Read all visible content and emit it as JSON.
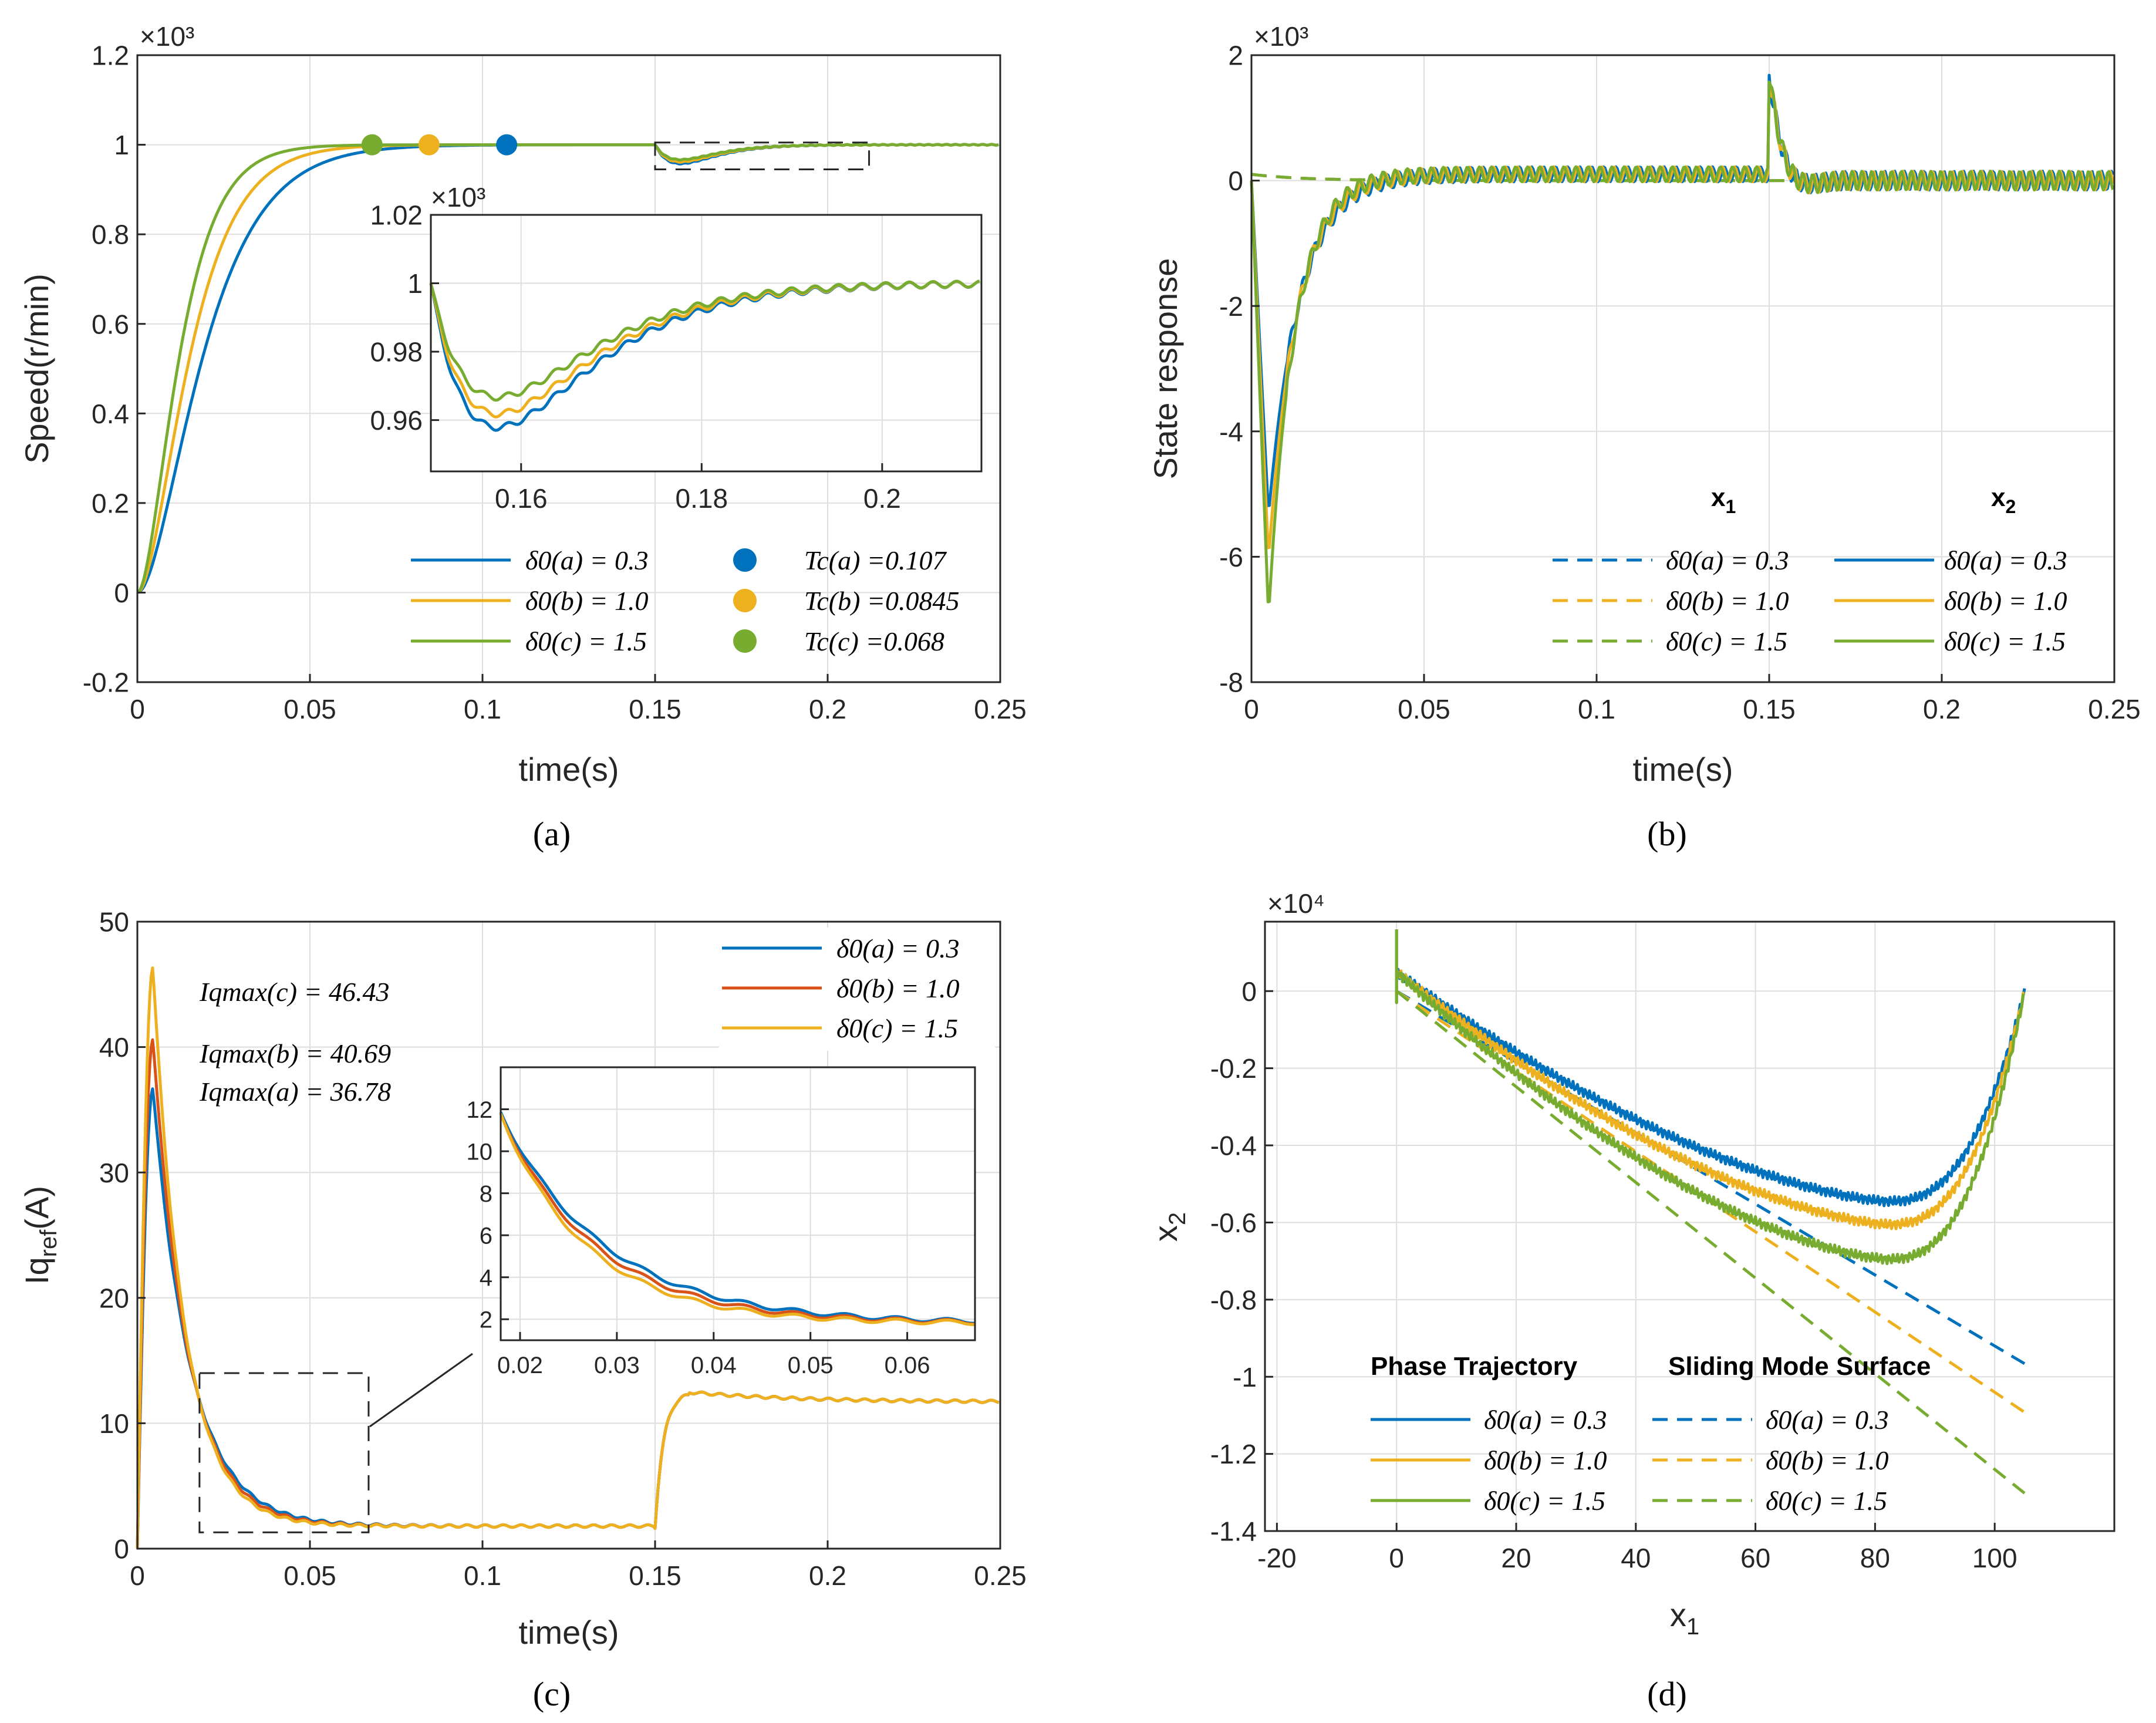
{
  "chart_data": [
    {
      "id": "a",
      "type": "line",
      "subplot_label": "(a)",
      "xlabel": "time(s)",
      "ylabel": "Speed(r/min)",
      "exponent": "×10³",
      "xlim": [
        0,
        0.25
      ],
      "ylim": [
        -0.2,
        1.2
      ],
      "xticks": [
        "0",
        "0.05",
        "0.1",
        "0.15",
        "0.2",
        "0.25"
      ],
      "yticks": [
        "-0.2",
        "0",
        "0.2",
        "0.4",
        "0.6",
        "0.8",
        "1",
        "1.2"
      ],
      "series": [
        {
          "name": "δ0(a) = 0.3",
          "color": "#0072BD",
          "tau": 0.0215
        },
        {
          "name": "δ0(b) = 1.0",
          "color": "#EDB120",
          "tau": 0.0172
        },
        {
          "name": "δ0(c) = 1.5",
          "color": "#77AC30",
          "tau": 0.0138
        }
      ],
      "markers": [
        {
          "name": "Tc(a) =0.107",
          "x": 0.107,
          "y": 1.0,
          "color": "#0072BD"
        },
        {
          "name": "Tc(b) =0.0845",
          "x": 0.0845,
          "y": 1.0,
          "color": "#EDB120"
        },
        {
          "name": "Tc(c) =0.068",
          "x": 0.068,
          "y": 1.0,
          "color": "#77AC30"
        }
      ],
      "inset": {
        "exponent": "×10³",
        "xlim": [
          0.15,
          0.211
        ],
        "ylim": [
          0.945,
          1.02
        ],
        "xticks": [
          "0.16",
          "0.18",
          "0.2"
        ],
        "yticks": [
          "0.96",
          "0.98",
          "1",
          "1.02"
        ],
        "dips": [
          0.957,
          0.961,
          0.966
        ],
        "zoom_box": [
          0.15,
          0.212,
          0.945,
          1.005
        ]
      }
    },
    {
      "id": "b",
      "type": "line",
      "subplot_label": "(b)",
      "xlabel": "time(s)",
      "ylabel": "State response",
      "exponent": "×10³",
      "xlim": [
        0,
        0.25
      ],
      "ylim": [
        -8,
        2
      ],
      "xticks": [
        "0",
        "0.05",
        "0.1",
        "0.15",
        "0.2",
        "0.25"
      ],
      "yticks": [
        "-8",
        "-6",
        "-4",
        "-2",
        "0",
        "2"
      ],
      "legend_headers": [
        "x1",
        "x2"
      ],
      "series_x1": [
        {
          "name": "δ0(a) = 0.3",
          "color": "#0072BD"
        },
        {
          "name": "δ0(b) = 1.0",
          "color": "#EDB120"
        },
        {
          "name": "δ0(c) = 1.5",
          "color": "#77AC30"
        }
      ],
      "series_x2": [
        {
          "name": "δ0(a) = 0.3",
          "color": "#0072BD",
          "min": -5.4
        },
        {
          "name": "δ0(b) = 1.0",
          "color": "#EDB120",
          "min": -6.1
        },
        {
          "name": "δ0(c) = 1.5",
          "color": "#77AC30",
          "min": -7.0
        }
      ]
    },
    {
      "id": "c",
      "type": "line",
      "subplot_label": "(c)",
      "xlabel": "time(s)",
      "ylabel": "Iq_ref(A)",
      "xlim": [
        0,
        0.25
      ],
      "ylim": [
        0,
        50
      ],
      "xticks": [
        "0",
        "0.05",
        "0.1",
        "0.15",
        "0.2",
        "0.25"
      ],
      "yticks": [
        "0",
        "10",
        "20",
        "30",
        "40",
        "50"
      ],
      "series": [
        {
          "name": "δ0(a) = 0.3",
          "color": "#0072BD",
          "peak": 36.78
        },
        {
          "name": "δ0(b) = 1.0",
          "color": "#D95319",
          "peak": 40.69
        },
        {
          "name": "δ0(c) = 1.5",
          "color": "#EDB120",
          "peak": 46.43
        }
      ],
      "annotations": [
        "Iqmax(c) = 46.43",
        "Iqmax(b) = 40.69",
        "Iqmax(a) = 36.78"
      ],
      "inset": {
        "xlim": [
          0.018,
          0.067
        ],
        "ylim": [
          1,
          14
        ],
        "xticks": [
          "0.02",
          "0.03",
          "0.04",
          "0.05",
          "0.06"
        ],
        "yticks": [
          "2",
          "4",
          "6",
          "8",
          "10",
          "12"
        ],
        "zoom_box": [
          0.018,
          0.067,
          1.3,
          14
        ]
      }
    },
    {
      "id": "d",
      "type": "line",
      "subplot_label": "(d)",
      "xlabel": "x1",
      "ylabel": "x2",
      "exponent": "×10⁴",
      "xlim": [
        -22,
        120
      ],
      "ylim": [
        -1.4,
        0.18
      ],
      "xticks": [
        "-20",
        "0",
        "20",
        "40",
        "60",
        "80",
        "100"
      ],
      "yticks": [
        "-1.4",
        "-1.2",
        "-1",
        "-0.8",
        "-0.6",
        "-0.4",
        "-0.2",
        "0"
      ],
      "legend_headers": [
        "Phase Trajectory",
        "Sliding Mode Surface"
      ],
      "series_trajectory": [
        {
          "name": "δ0(a) = 0.3",
          "color": "#0072BD",
          "min": -0.545
        },
        {
          "name": "δ0(b) = 1.0",
          "color": "#EDB120",
          "min": -0.605
        },
        {
          "name": "δ0(c) = 1.5",
          "color": "#77AC30",
          "min": -0.695
        }
      ],
      "series_surface": [
        {
          "name": "δ0(a) = 0.3",
          "color": "#0072BD",
          "slope": -0.0092
        },
        {
          "name": "δ0(b) = 1.0",
          "color": "#EDB120",
          "slope": -0.0104
        },
        {
          "name": "δ0(c) = 1.5",
          "color": "#77AC30",
          "slope": -0.0124
        }
      ]
    }
  ]
}
